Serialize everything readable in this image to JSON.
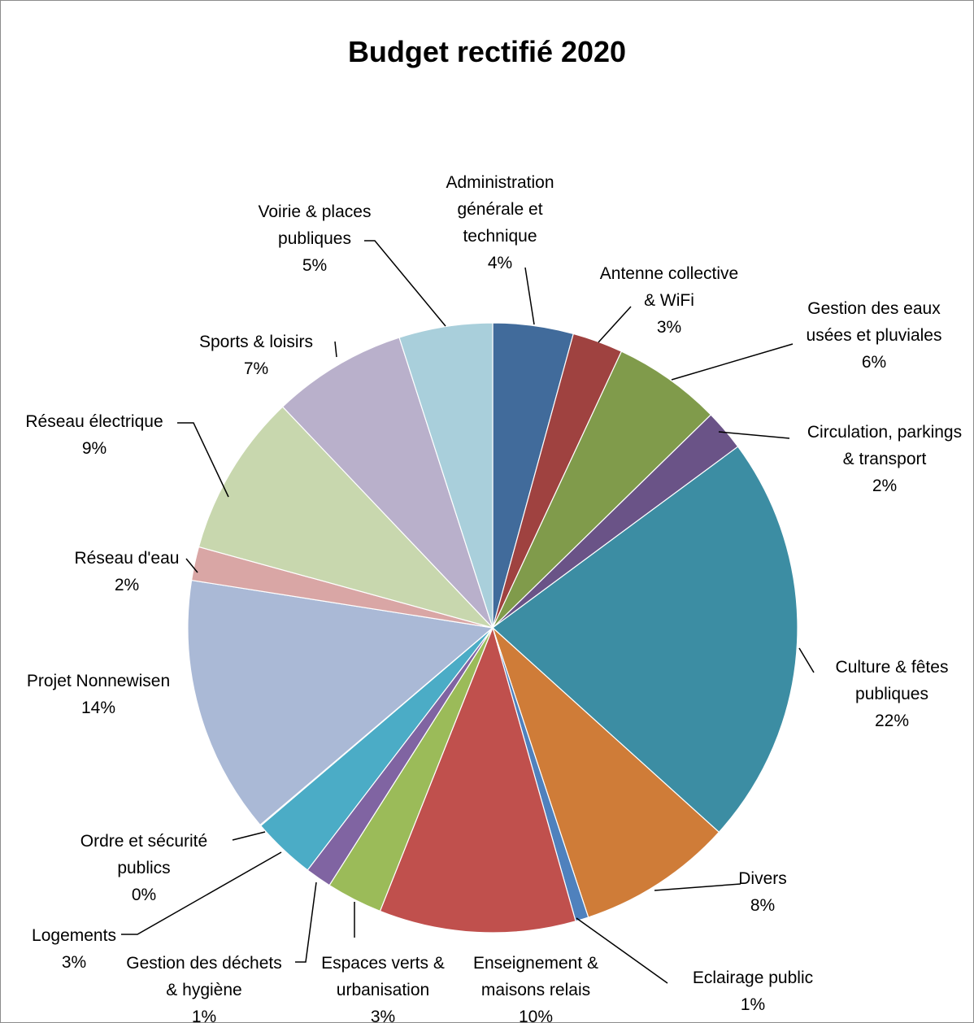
{
  "chart_data": {
    "type": "pie",
    "title": "Budget rectifié 2020",
    "unit": "%",
    "start_angle_deg": 0,
    "direction": "clockwise",
    "slices": [
      {
        "label": [
          "Administration",
          "générale et",
          "technique"
        ],
        "percent_label": "4%",
        "value": 4.3,
        "color": "#416B9B"
      },
      {
        "label": [
          "Antenne collective",
          "& WiFi"
        ],
        "percent_label": "3%",
        "value": 2.7,
        "color": "#9F4240"
      },
      {
        "label": [
          "Gestion des eaux",
          "usées et pluviales"
        ],
        "percent_label": "6%",
        "value": 5.8,
        "color": "#809B4B"
      },
      {
        "label": [
          "Circulation, parkings",
          "& transport"
        ],
        "percent_label": "2%",
        "value": 2.2,
        "color": "#6A5387"
      },
      {
        "label": [
          "Culture & fêtes",
          "publiques"
        ],
        "percent_label": "22%",
        "value": 22.0,
        "color": "#3C8DA3"
      },
      {
        "label": [
          "Divers"
        ],
        "percent_label": "8%",
        "value": 8.3,
        "color": "#CF7C38"
      },
      {
        "label": [
          "Eclairage public"
        ],
        "percent_label": "1%",
        "value": 0.7,
        "color": "#4F81BD"
      },
      {
        "label": [
          "Enseignement &",
          "maisons relais"
        ],
        "percent_label": "10%",
        "value": 10.5,
        "color": "#C0504D"
      },
      {
        "label": [
          "Espaces verts &",
          "urbanisation"
        ],
        "percent_label": "3%",
        "value": 3.0,
        "color": "#9BBB59"
      },
      {
        "label": [
          "Gestion des déchets",
          "& hygiène"
        ],
        "percent_label": "1%",
        "value": 1.4,
        "color": "#8064A2"
      },
      {
        "label": [
          "Logements"
        ],
        "percent_label": "3%",
        "value": 3.4,
        "color": "#4BACC6"
      },
      {
        "label": [
          "Ordre et sécurité",
          "publics"
        ],
        "percent_label": "0%",
        "value": 0.05,
        "color": "#F79646"
      },
      {
        "label": [
          "Projet Nonnewisen"
        ],
        "percent_label": "14%",
        "value": 13.8,
        "color": "#AAB9D6"
      },
      {
        "label": [
          "Réseau d'eau"
        ],
        "percent_label": "2%",
        "value": 1.8,
        "color": "#D9A6A5"
      },
      {
        "label": [
          "Réseau électrique"
        ],
        "percent_label": "9%",
        "value": 8.7,
        "color": "#C8D7AE"
      },
      {
        "label": [
          "Sports & loisirs"
        ],
        "percent_label": "7%",
        "value": 7.2,
        "color": "#B9B0CB"
      },
      {
        "label": [
          "Voirie & places",
          "publiques"
        ],
        "percent_label": "5%",
        "value": 5.0,
        "color": "#A9CFDB"
      }
    ]
  }
}
